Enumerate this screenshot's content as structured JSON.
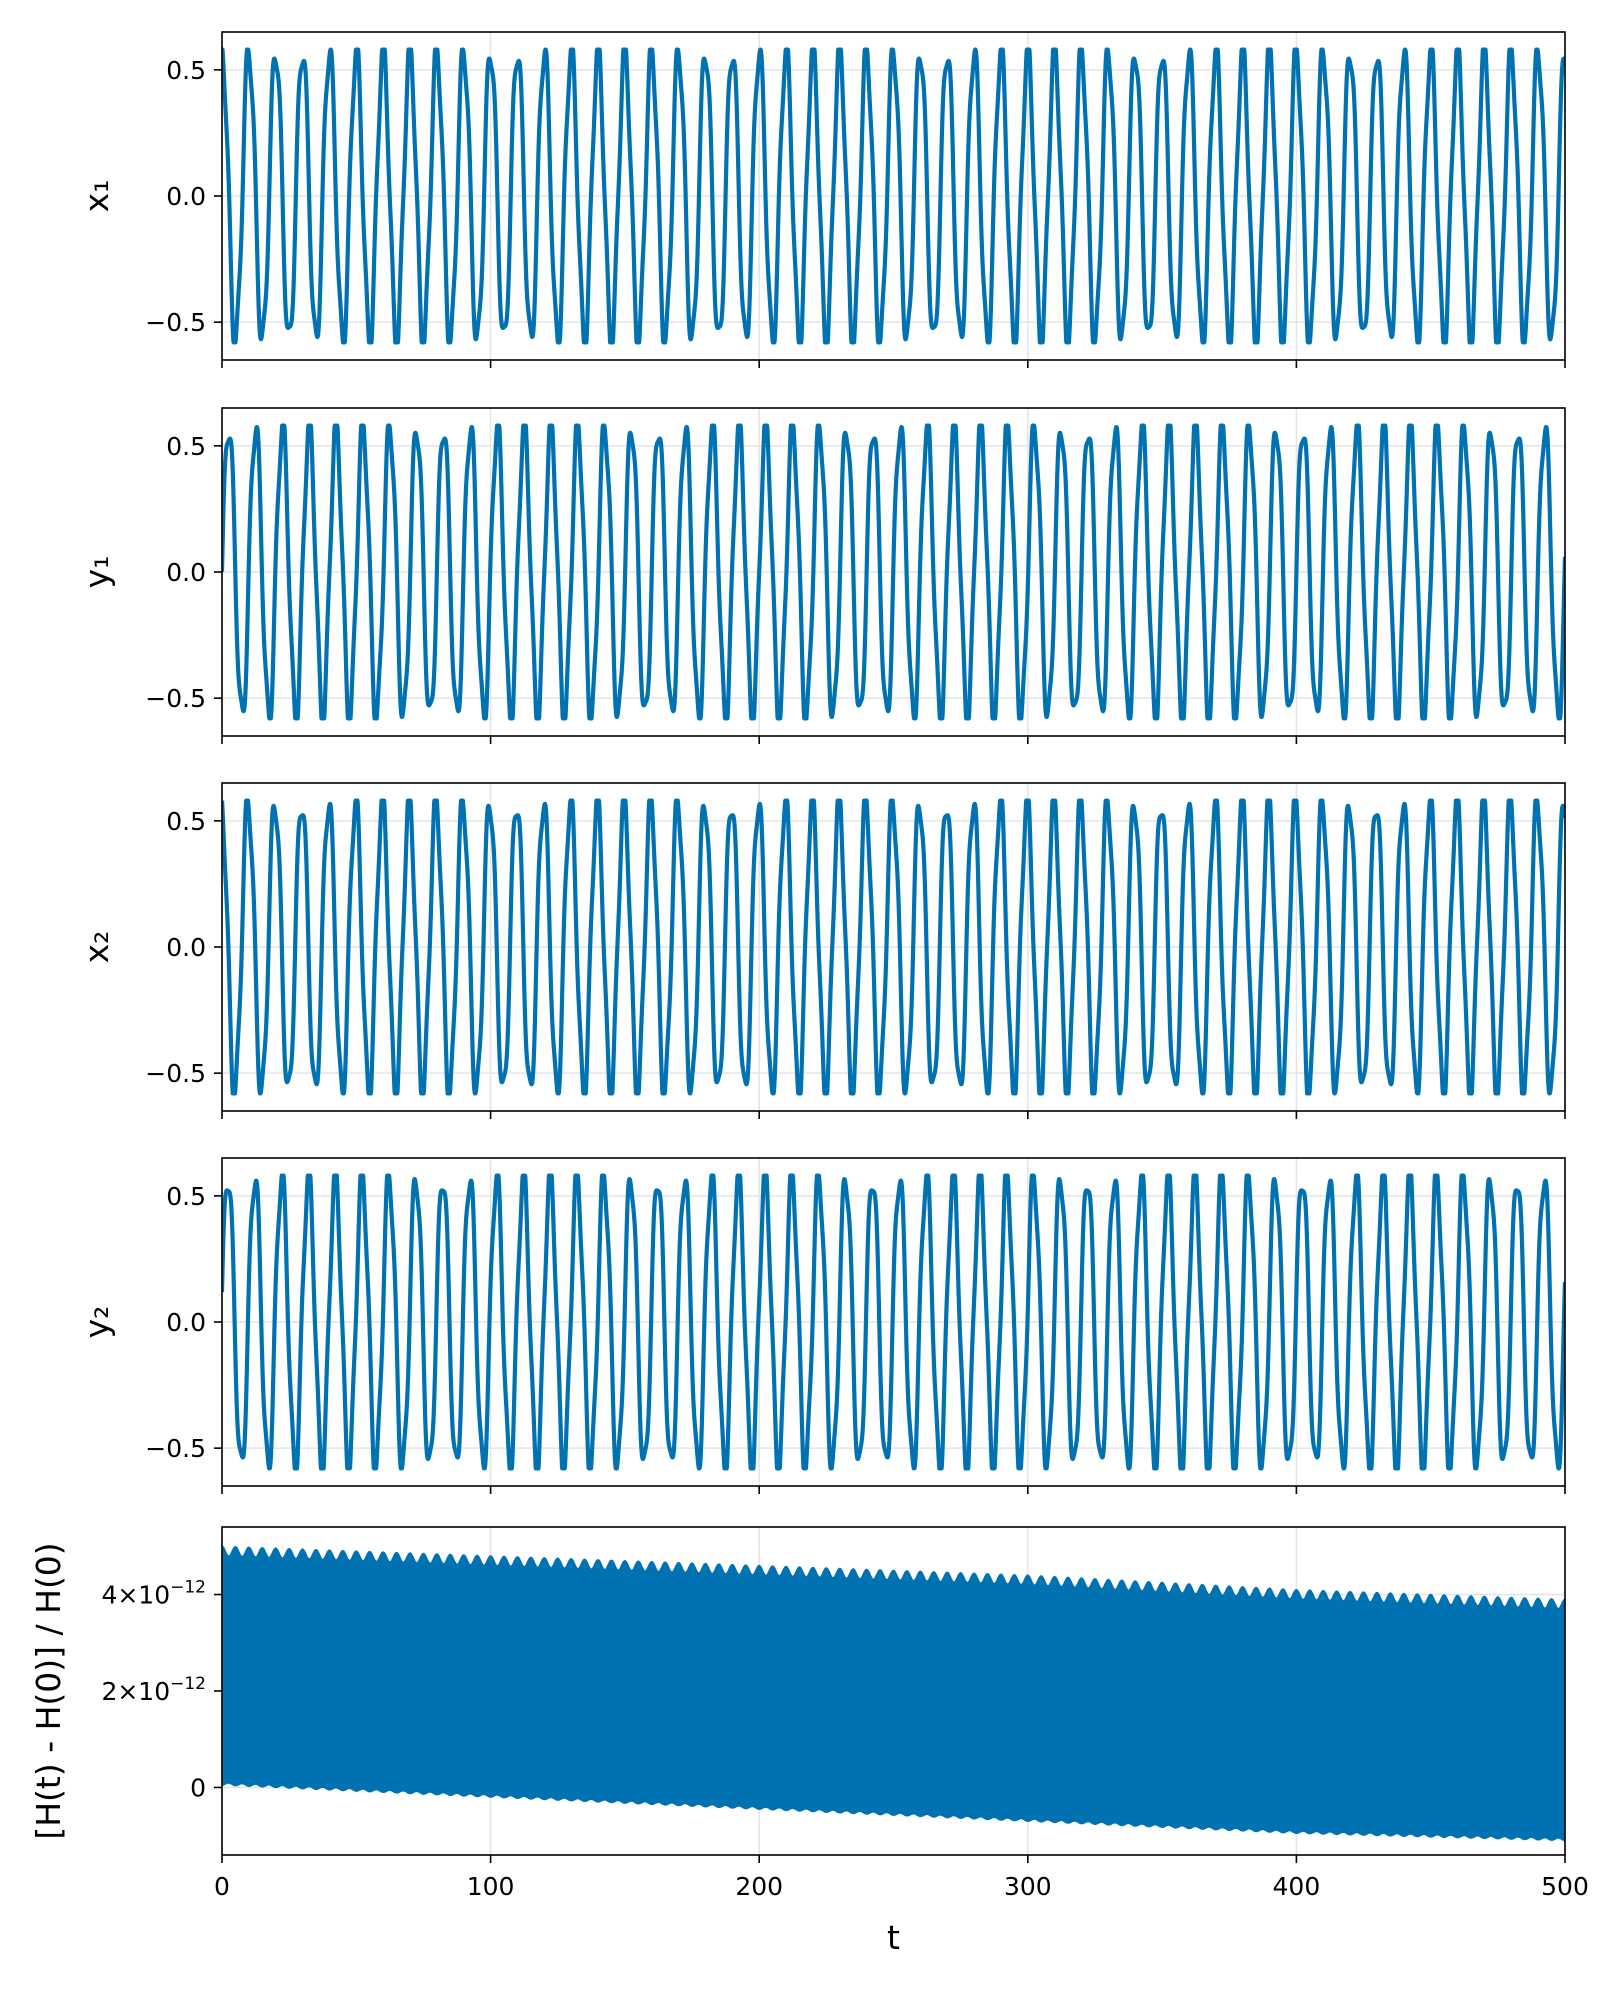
{
  "chart_data": [
    {
      "type": "line",
      "ylabel": "x₁",
      "xlim": [
        0,
        500
      ],
      "ylim": [
        -0.65,
        0.65
      ],
      "yticks": [
        -0.5,
        0.0,
        0.5
      ],
      "ytick_labels": [
        "−0.5",
        "0.0",
        "0.5"
      ],
      "grid": true,
      "color": "#0072b2",
      "series": [
        {
          "kind": "oscillation",
          "amplitude": 0.58,
          "period": 10.0,
          "inner_amplitude": 0.06,
          "inner_period": 3.2,
          "phase_deg": 90,
          "t_start": 0,
          "t_end": 500
        }
      ]
    },
    {
      "type": "line",
      "ylabel": "y₁",
      "xlim": [
        0,
        500
      ],
      "ylim": [
        -0.65,
        0.65
      ],
      "yticks": [
        -0.5,
        0.0,
        0.5
      ],
      "ytick_labels": [
        "−0.5",
        "0.0",
        "0.5"
      ],
      "grid": true,
      "color": "#0072b2",
      "series": [
        {
          "kind": "oscillation",
          "amplitude": 0.58,
          "period": 10.0,
          "inner_amplitude": 0.06,
          "inner_period": 3.2,
          "phase_deg": 0,
          "t_start": 0,
          "t_end": 500
        }
      ]
    },
    {
      "type": "line",
      "ylabel": "x₂",
      "xlim": [
        0,
        500
      ],
      "ylim": [
        -0.65,
        0.65
      ],
      "yticks": [
        -0.5,
        0.0,
        0.5
      ],
      "ytick_labels": [
        "−0.5",
        "0.0",
        "0.5"
      ],
      "grid": true,
      "color": "#0072b2",
      "series": [
        {
          "kind": "oscillation",
          "amplitude": 0.58,
          "period": 10.0,
          "inner_amplitude": 0.06,
          "inner_period": 3.2,
          "phase_deg": 100,
          "t_start": 0,
          "t_end": 500
        }
      ]
    },
    {
      "type": "line",
      "ylabel": "y₂",
      "xlim": [
        0,
        500
      ],
      "ylim": [
        -0.65,
        0.65
      ],
      "yticks": [
        -0.5,
        0.0,
        0.5
      ],
      "ytick_labels": [
        "−0.5",
        "0.0",
        "0.5"
      ],
      "grid": true,
      "color": "#0072b2",
      "series": [
        {
          "kind": "oscillation",
          "amplitude": 0.58,
          "period": 10.0,
          "inner_amplitude": 0.06,
          "inner_period": 3.2,
          "phase_deg": 10,
          "t_start": 0,
          "t_end": 500
        }
      ]
    },
    {
      "type": "area",
      "ylabel": "[H(t) - H(0)] / H(0)",
      "xlabel": "t",
      "xlim": [
        0,
        500
      ],
      "ylim": [
        -1.4e-12,
        5.4e-12
      ],
      "xticks": [
        0,
        100,
        200,
        300,
        400,
        500
      ],
      "xtick_labels": [
        "0",
        "100",
        "200",
        "300",
        "400",
        "500"
      ],
      "yticks": [
        0,
        2e-12,
        4e-12
      ],
      "ytick_labels": [
        {
          "mantissa": "0",
          "exponent": ""
        },
        {
          "mantissa": "2×10",
          "exponent": "−12"
        },
        {
          "mantissa": "4×10",
          "exponent": "−12"
        }
      ],
      "grid": true,
      "color": "#0072b2",
      "series": [
        {
          "kind": "band",
          "x": [
            0,
            100,
            200,
            300,
            400,
            500
          ],
          "upper": [
            5e-12,
            4.8e-12,
            4.6e-12,
            4.4e-12,
            4.1e-12,
            3.9e-12
          ],
          "lower": [
            5e-14,
            -2e-13,
            -4.5e-13,
            -7e-13,
            -9.5e-13,
            -1.1e-12
          ],
          "ripple_period": 5.0,
          "ripple_depth": 2e-13
        }
      ]
    }
  ]
}
